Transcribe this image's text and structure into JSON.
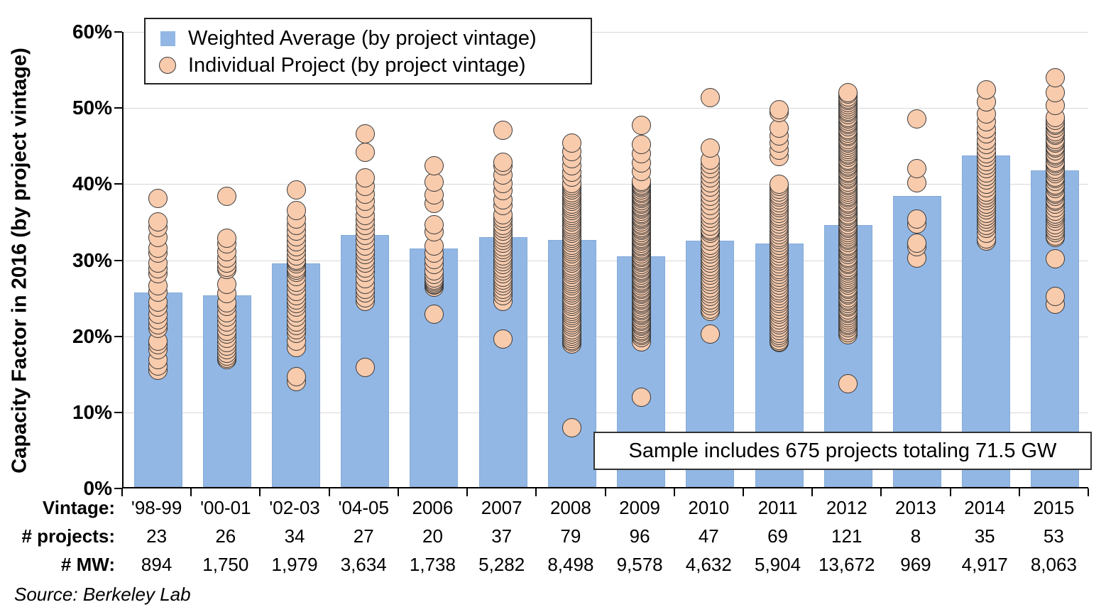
{
  "chart_data": {
    "type": "bar",
    "title": "",
    "ylabel": "Capacity Factor in 2016 (by project vintage)",
    "ylim": [
      0,
      60
    ],
    "yticks": [
      "0%",
      "10%",
      "20%",
      "30%",
      "40%",
      "50%",
      "60%"
    ],
    "ytick_values": [
      0,
      10,
      20,
      30,
      40,
      50,
      60
    ],
    "grid": "horizontal",
    "legend_position": "top-left",
    "annotation": "Sample includes 675 projects totaling 71.5 GW",
    "source": "Source: Berkeley Lab",
    "row_labels": {
      "vintage": "Vintage:",
      "projects": "# projects:",
      "mw": "# MW:"
    },
    "categories": [
      "'98-99",
      "'00-01",
      "'02-03",
      "'04-05",
      "2006",
      "2007",
      "2008",
      "2009",
      "2010",
      "2011",
      "2012",
      "2013",
      "2014",
      "2015"
    ],
    "num_projects": [
      "23",
      "26",
      "34",
      "27",
      "20",
      "37",
      "79",
      "96",
      "47",
      "69",
      "121",
      "8",
      "35",
      "53"
    ],
    "mw": [
      "894",
      "1,750",
      "1,979",
      "3,634",
      "1,738",
      "5,282",
      "8,498",
      "9,578",
      "4,632",
      "5,904",
      "13,672",
      "969",
      "4,917",
      "8,063"
    ],
    "series": [
      {
        "name": "Weighted Average (by project vintage)",
        "type": "bar",
        "values": [
          25.8,
          25.4,
          29.6,
          33.3,
          31.5,
          33.0,
          32.7,
          30.5,
          32.6,
          32.2,
          34.6,
          38.4,
          43.8,
          41.8
        ]
      },
      {
        "name": "Individual Project (by project vintage)",
        "type": "scatter",
        "points_by_vintage": [
          [
            38.1,
            35.0,
            34.3,
            33.0,
            31.6,
            30.9,
            29.6,
            28.9,
            28.2,
            26.6,
            25.8,
            24.5,
            23.8,
            22.9,
            22.2,
            21.5,
            21.0,
            19.4,
            18.9,
            18.2,
            16.9,
            16.1,
            15.5
          ],
          [
            38.4,
            32.9,
            32.1,
            31.1,
            30.3,
            29.6,
            29.1,
            28.8,
            26.8,
            25.6,
            24.4,
            23.9,
            23.1,
            22.5,
            21.9,
            21.3,
            20.7,
            20.3,
            19.7,
            19.2,
            18.7,
            18.2,
            17.8,
            17.4,
            17.1,
            16.9
          ],
          [
            39.2,
            36.5,
            35.4,
            34.6,
            33.8,
            33.1,
            32.4,
            31.8,
            31.2,
            30.6,
            30.0,
            29.8,
            29.5,
            29.0,
            28.7,
            28.4,
            27.9,
            27.1,
            26.6,
            25.9,
            25.3,
            24.8,
            24.3,
            23.8,
            23.1,
            22.5,
            21.9,
            21.4,
            20.9,
            20.4,
            19.4,
            18.5,
            14.7,
            14.0
          ],
          [
            46.6,
            44.2,
            40.8,
            39.7,
            38.7,
            37.7,
            36.8,
            35.9,
            35.2,
            34.6,
            33.9,
            33.3,
            32.6,
            31.9,
            31.2,
            30.7,
            30.1,
            29.6,
            29.0,
            28.4,
            27.6,
            26.8,
            26.2,
            25.7,
            25.1,
            24.6,
            15.9
          ],
          [
            42.4,
            40.3,
            38.6,
            37.5,
            34.7,
            33.7,
            31.9,
            30.9,
            30.1,
            29.4,
            28.6,
            28.1,
            27.7,
            27.4,
            27.2,
            27.0,
            26.8,
            26.7,
            26.5,
            22.9
          ],
          [
            47.1,
            42.9,
            42.4,
            41.2,
            40.1,
            39.1,
            37.9,
            37.2,
            36.0,
            35.5,
            35.1,
            34.6,
            34.2,
            33.8,
            33.4,
            33.0,
            32.6,
            32.2,
            31.8,
            31.4,
            31.0,
            30.6,
            30.2,
            29.8,
            29.4,
            29.0,
            28.6,
            28.2,
            27.8,
            27.4,
            27.0,
            26.6,
            26.2,
            25.8,
            25.3,
            24.6,
            19.6
          ],
          [
            45.4,
            44.3,
            43.3,
            42.4,
            41.6,
            40.9,
            40.1,
            39.8,
            39.5,
            39.2,
            38.9,
            38.6,
            38.3,
            38.0,
            37.7,
            37.4,
            37.1,
            36.8,
            36.5,
            36.2,
            35.9,
            35.6,
            35.3,
            35.0,
            34.7,
            34.4,
            34.1,
            33.8,
            33.5,
            33.2,
            32.9,
            32.6,
            32.3,
            32.0,
            31.7,
            31.4,
            31.1,
            30.8,
            30.5,
            30.2,
            29.9,
            29.6,
            29.3,
            29.0,
            28.7,
            28.4,
            28.1,
            27.8,
            27.5,
            27.2,
            26.9,
            26.6,
            26.3,
            26.0,
            25.7,
            25.4,
            25.1,
            24.8,
            24.5,
            24.2,
            23.9,
            23.6,
            23.3,
            23.0,
            22.7,
            22.4,
            22.1,
            21.8,
            21.5,
            21.2,
            20.9,
            20.6,
            20.3,
            20.0,
            19.7,
            19.5,
            19.3,
            19.0,
            8.0
          ],
          [
            47.7,
            45.2,
            44.0,
            42.8,
            41.7,
            40.4,
            40.2,
            39.9,
            39.7,
            39.5,
            39.2,
            39.0,
            38.8,
            38.5,
            38.3,
            38.1,
            37.8,
            37.6,
            37.4,
            37.1,
            36.9,
            36.7,
            36.4,
            36.2,
            36.0,
            35.7,
            35.5,
            35.3,
            35.0,
            34.8,
            34.6,
            34.3,
            34.1,
            33.9,
            33.6,
            33.4,
            33.2,
            32.9,
            32.7,
            32.5,
            32.2,
            32.0,
            31.8,
            31.5,
            31.3,
            31.1,
            30.8,
            30.6,
            30.4,
            30.1,
            29.9,
            29.7,
            29.4,
            29.2,
            29.0,
            28.7,
            28.5,
            28.3,
            28.0,
            27.8,
            27.6,
            27.3,
            27.1,
            26.9,
            26.6,
            26.4,
            26.2,
            25.9,
            25.7,
            25.5,
            25.2,
            25.0,
            24.8,
            24.5,
            24.3,
            24.1,
            23.8,
            23.6,
            23.4,
            23.1,
            22.9,
            22.7,
            22.4,
            22.2,
            22.0,
            21.7,
            21.5,
            21.3,
            21.0,
            20.8,
            20.6,
            20.3,
            20.1,
            19.8,
            19.3,
            12.0
          ],
          [
            51.4,
            44.7,
            43.2,
            42.6,
            42.0,
            41.4,
            40.8,
            40.2,
            39.6,
            39.0,
            38.4,
            37.8,
            37.2,
            36.6,
            36.0,
            35.5,
            35.0,
            34.5,
            34.0,
            33.8,
            33.5,
            33.0,
            32.5,
            32.0,
            31.6,
            31.2,
            30.8,
            30.4,
            30.0,
            29.6,
            29.2,
            28.8,
            28.4,
            28.0,
            27.6,
            27.2,
            26.8,
            26.4,
            26.0,
            25.6,
            25.2,
            24.8,
            24.4,
            24.0,
            23.6,
            23.3,
            20.3
          ],
          [
            49.8,
            49.4,
            47.4,
            46.3,
            45.4,
            44.5,
            43.6,
            40.0,
            39.7,
            39.3,
            39.0,
            38.6,
            38.3,
            37.9,
            37.6,
            37.2,
            36.9,
            36.5,
            36.2,
            35.8,
            35.5,
            35.1,
            34.8,
            34.4,
            34.1,
            33.7,
            33.4,
            33.0,
            32.7,
            32.3,
            32.0,
            31.6,
            31.3,
            30.9,
            30.6,
            30.2,
            29.9,
            29.5,
            29.2,
            28.8,
            28.5,
            28.1,
            27.8,
            27.4,
            27.1,
            26.7,
            26.4,
            26.0,
            25.7,
            25.3,
            25.0,
            24.6,
            24.3,
            23.9,
            23.6,
            23.2,
            22.9,
            22.5,
            22.2,
            21.8,
            21.5,
            21.1,
            20.8,
            20.4,
            20.1,
            19.8,
            19.5,
            19.3,
            19.2
          ],
          [
            52.0,
            51.8,
            51.5,
            51.2,
            51.0,
            50.7,
            50.4,
            50.2,
            49.9,
            49.6,
            49.4,
            49.1,
            48.8,
            48.6,
            48.3,
            48.0,
            47.8,
            47.5,
            47.2,
            47.0,
            46.7,
            46.4,
            46.2,
            45.9,
            45.6,
            45.4,
            45.1,
            44.8,
            44.6,
            44.3,
            44.0,
            43.8,
            43.5,
            43.2,
            43.0,
            42.7,
            42.4,
            42.2,
            41.9,
            41.6,
            41.4,
            41.1,
            40.8,
            40.6,
            40.3,
            40.0,
            39.8,
            39.5,
            39.2,
            39.0,
            38.7,
            38.4,
            38.2,
            37.9,
            37.6,
            37.4,
            37.1,
            36.8,
            36.6,
            36.3,
            36.0,
            35.8,
            35.5,
            35.2,
            35.0,
            34.7,
            34.4,
            34.2,
            33.9,
            33.6,
            33.4,
            33.1,
            32.8,
            32.6,
            32.3,
            32.0,
            31.8,
            31.5,
            31.2,
            31.0,
            30.7,
            30.4,
            30.2,
            29.9,
            29.6,
            29.4,
            29.1,
            28.8,
            28.6,
            28.3,
            28.0,
            27.8,
            27.5,
            27.2,
            27.0,
            26.7,
            26.4,
            26.2,
            25.9,
            25.6,
            25.4,
            25.1,
            24.8,
            24.6,
            24.3,
            24.0,
            23.8,
            23.5,
            23.2,
            23.0,
            22.7,
            22.4,
            22.2,
            21.9,
            21.6,
            21.4,
            21.1,
            20.8,
            20.5,
            20.2,
            13.8
          ],
          [
            48.6,
            42.0,
            40.2,
            35.4,
            34.8,
            32.2,
            31.8,
            30.3
          ],
          [
            52.4,
            50.8,
            49.2,
            48.2,
            47.3,
            46.6,
            45.8,
            45.2,
            44.6,
            44.0,
            43.5,
            43.0,
            42.5,
            42.0,
            41.5,
            41.0,
            40.5,
            40.0,
            39.5,
            39.0,
            38.6,
            38.2,
            37.8,
            37.4,
            37.0,
            36.6,
            36.2,
            35.8,
            35.4,
            35.0,
            34.6,
            34.2,
            33.5,
            32.8,
            32.5
          ],
          [
            54.0,
            52.0,
            50.3,
            48.8,
            48.4,
            47.9,
            47.7,
            47.4,
            46.9,
            46.6,
            46.4,
            45.9,
            45.6,
            45.4,
            44.9,
            44.7,
            44.4,
            43.9,
            43.7,
            43.4,
            42.9,
            42.7,
            42.4,
            41.9,
            41.7,
            41.4,
            40.9,
            40.7,
            40.4,
            39.9,
            39.7,
            39.4,
            38.9,
            38.7,
            38.4,
            37.9,
            37.7,
            37.4,
            36.9,
            36.4,
            36.1,
            35.8,
            35.5,
            35.1,
            34.7,
            34.3,
            33.9,
            33.6,
            33.2,
            33.0,
            30.2,
            25.2,
            24.2
          ]
        ]
      }
    ],
    "colors": {
      "bar_fill": "#92b7e4",
      "point_fill": "#f8cbad",
      "point_border": "#3a3a3a",
      "gridline": "#d8d8d8",
      "axis": "#000000"
    }
  }
}
